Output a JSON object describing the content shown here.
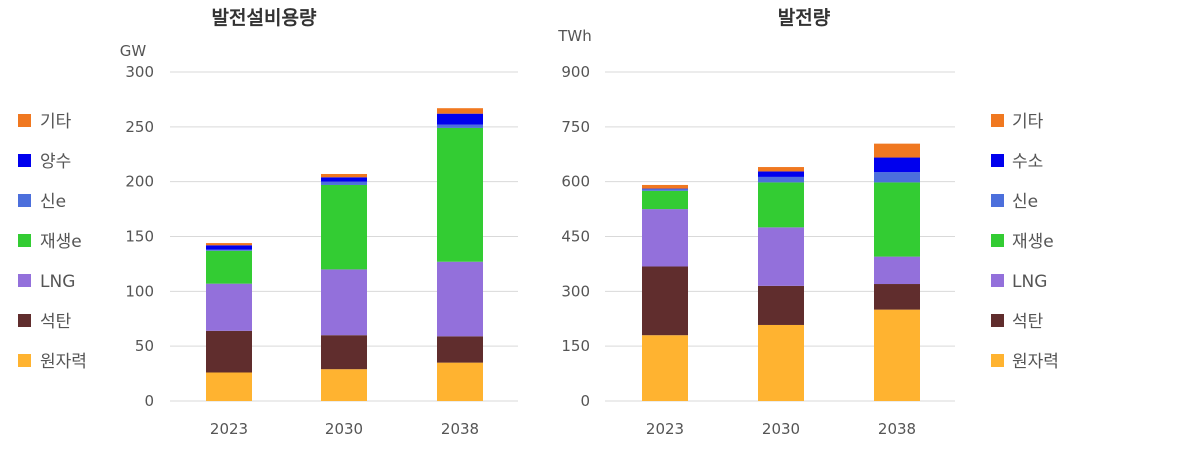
{
  "chart_data": [
    {
      "type": "bar",
      "stacked": true,
      "title": "발전설비용량",
      "unit": "GW",
      "categories": [
        "2023",
        "2030",
        "2038"
      ],
      "ylim": [
        0,
        300
      ],
      "yticks": [
        "0",
        "50",
        "100",
        "150",
        "200",
        "250",
        "300"
      ],
      "legend_position": "left",
      "series": [
        {
          "name": "원자력",
          "color": "#FFB330",
          "values": [
            26,
            29,
            35
          ]
        },
        {
          "name": "석탄",
          "color": "#602D2D",
          "values": [
            38,
            31,
            24
          ]
        },
        {
          "name": "LNG",
          "color": "#9370DB",
          "values": [
            43,
            60,
            68
          ]
        },
        {
          "name": "재생e",
          "color": "#33CC33",
          "values": [
            30,
            77,
            122
          ]
        },
        {
          "name": "신e",
          "color": "#4C6FDC",
          "values": [
            1,
            3,
            3
          ]
        },
        {
          "name": "양수",
          "color": "#0000EE",
          "values": [
            4,
            4,
            10
          ]
        },
        {
          "name": "기타",
          "color": "#F07820",
          "values": [
            2,
            3,
            5
          ]
        }
      ]
    },
    {
      "type": "bar",
      "stacked": true,
      "title": "발전량",
      "unit": "TWh",
      "categories": [
        "2023",
        "2030",
        "2038"
      ],
      "ylim": [
        0,
        900
      ],
      "yticks": [
        "0",
        "150",
        "300",
        "450",
        "600",
        "750",
        "900"
      ],
      "legend_position": "right",
      "series": [
        {
          "name": "원자력",
          "color": "#FFB330",
          "values": [
            180,
            208,
            250
          ]
        },
        {
          "name": "석탄",
          "color": "#602D2D",
          "values": [
            188,
            107,
            70
          ]
        },
        {
          "name": "LNG",
          "color": "#9370DB",
          "values": [
            157,
            160,
            75
          ]
        },
        {
          "name": "재생e",
          "color": "#33CC33",
          "values": [
            50,
            123,
            203
          ]
        },
        {
          "name": "신e",
          "color": "#4C6FDC",
          "values": [
            5,
            15,
            28
          ]
        },
        {
          "name": "수소",
          "color": "#0000EE",
          "values": [
            1,
            15,
            40
          ]
        },
        {
          "name": "기타",
          "color": "#F07820",
          "values": [
            10,
            12,
            38
          ]
        }
      ]
    }
  ]
}
